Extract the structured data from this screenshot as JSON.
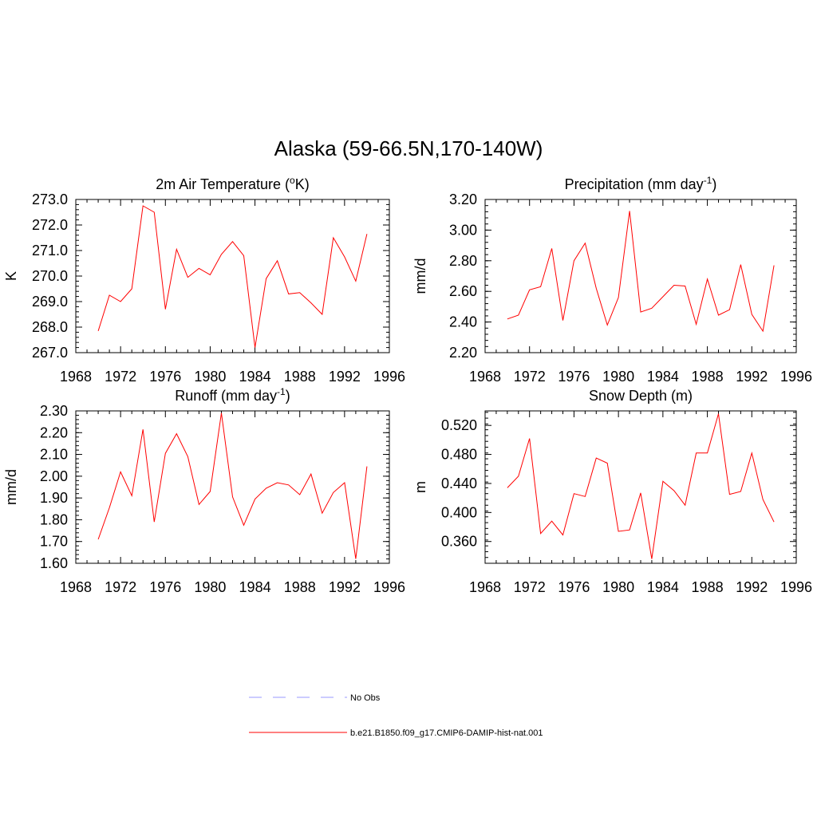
{
  "title": "Alaska (59-66.5N,170-140W)",
  "colors": {
    "model": "#ff0000",
    "obs": "#9999ff",
    "axis": "#000000"
  },
  "legend": [
    {
      "label": "No Obs",
      "style": "dashed",
      "color": "#9999ff"
    },
    {
      "label": "b.e21.B1850.f09_g17.CMIP6-DAMIP-hist-nat.001",
      "style": "solid",
      "color": "#ff0000"
    }
  ],
  "chart_data": [
    {
      "type": "line",
      "title": "2m Air Temperature (",
      "title_sup": "o",
      "title_after": "K)",
      "ylabel": "K",
      "xlim": [
        1968,
        1996
      ],
      "ylim": [
        267.0,
        273.0
      ],
      "xticks": [
        1968,
        1972,
        1976,
        1980,
        1984,
        1988,
        1992,
        1996
      ],
      "yticks": [
        "267.0",
        "268.0",
        "269.0",
        "270.0",
        "271.0",
        "272.0",
        "273.0"
      ],
      "series": [
        {
          "x": [
            1970,
            1971,
            1972,
            1973,
            1974,
            1975,
            1976,
            1977,
            1978,
            1979,
            1980,
            1981,
            1982,
            1983,
            1984,
            1985,
            1986,
            1987,
            1988,
            1989,
            1990,
            1991,
            1992,
            1993,
            1994
          ],
          "values": [
            267.85,
            269.25,
            269.0,
            269.5,
            272.75,
            272.5,
            268.7,
            271.05,
            269.95,
            270.3,
            270.05,
            270.85,
            271.35,
            270.8,
            267.2,
            269.9,
            270.6,
            269.3,
            269.35,
            268.95,
            268.5,
            271.5,
            270.75,
            269.8,
            271.65
          ]
        }
      ]
    },
    {
      "type": "line",
      "title": "Precipitation (mm day",
      "title_sup": "-1",
      "title_after": ")",
      "ylabel": "mm/d",
      "xlim": [
        1968,
        1996
      ],
      "ylim": [
        2.2,
        3.2
      ],
      "xticks": [
        1968,
        1972,
        1976,
        1980,
        1984,
        1988,
        1992,
        1996
      ],
      "yticks": [
        "2.20",
        "2.40",
        "2.60",
        "2.80",
        "3.00",
        "3.20"
      ],
      "series": [
        {
          "x": [
            1970,
            1971,
            1972,
            1973,
            1974,
            1975,
            1976,
            1977,
            1978,
            1979,
            1980,
            1981,
            1982,
            1983,
            1984,
            1985,
            1986,
            1987,
            1988,
            1989,
            1990,
            1991,
            1992,
            1993,
            1994
          ],
          "values": [
            2.42,
            2.445,
            2.61,
            2.63,
            2.88,
            2.41,
            2.8,
            2.915,
            2.62,
            2.38,
            2.56,
            3.125,
            2.465,
            2.49,
            2.565,
            2.64,
            2.635,
            2.385,
            2.68,
            2.445,
            2.48,
            2.775,
            2.45,
            2.34,
            2.77
          ]
        }
      ]
    },
    {
      "type": "line",
      "title": "Runoff (mm day",
      "title_sup": "-1",
      "title_after": ")",
      "ylabel": "mm/d",
      "xlim": [
        1968,
        1996
      ],
      "ylim": [
        1.6,
        2.3
      ],
      "xticks": [
        1968,
        1972,
        1976,
        1980,
        1984,
        1988,
        1992,
        1996
      ],
      "yticks": [
        "1.60",
        "1.70",
        "1.80",
        "1.90",
        "2.00",
        "2.10",
        "2.20",
        "2.30"
      ],
      "series": [
        {
          "x": [
            1970,
            1971,
            1972,
            1973,
            1974,
            1975,
            1976,
            1977,
            1978,
            1979,
            1980,
            1981,
            1982,
            1983,
            1984,
            1985,
            1986,
            1987,
            1988,
            1989,
            1990,
            1991,
            1992,
            1993,
            1994
          ],
          "values": [
            1.71,
            1.855,
            2.02,
            1.91,
            2.215,
            1.79,
            2.105,
            2.195,
            2.09,
            1.87,
            1.93,
            2.29,
            1.905,
            1.775,
            1.895,
            1.945,
            1.97,
            1.96,
            1.915,
            2.01,
            1.83,
            1.925,
            1.97,
            1.62,
            2.045
          ]
        }
      ]
    },
    {
      "type": "line",
      "title": "Snow Depth (m)",
      "title_sup": "",
      "title_after": "",
      "ylabel": "m",
      "xlim": [
        1968,
        1996
      ],
      "ylim": [
        0.33,
        0.54
      ],
      "xticks": [
        1968,
        1972,
        1976,
        1980,
        1984,
        1988,
        1992,
        1996
      ],
      "yticks": [
        "0.360",
        "0.400",
        "0.440",
        "0.480",
        "0.520"
      ],
      "ytick_values": [
        0.36,
        0.4,
        0.44,
        0.48,
        0.52
      ],
      "series": [
        {
          "x": [
            1970,
            1971,
            1972,
            1973,
            1974,
            1975,
            1976,
            1977,
            1978,
            1979,
            1980,
            1981,
            1982,
            1983,
            1984,
            1985,
            1986,
            1987,
            1988,
            1989,
            1990,
            1991,
            1992,
            1993,
            1994
          ],
          "values": [
            0.434,
            0.45,
            0.502,
            0.371,
            0.388,
            0.369,
            0.426,
            0.422,
            0.475,
            0.468,
            0.374,
            0.376,
            0.427,
            0.336,
            0.443,
            0.43,
            0.41,
            0.482,
            0.482,
            0.536,
            0.425,
            0.429,
            0.482,
            0.418,
            0.387
          ]
        }
      ]
    }
  ]
}
